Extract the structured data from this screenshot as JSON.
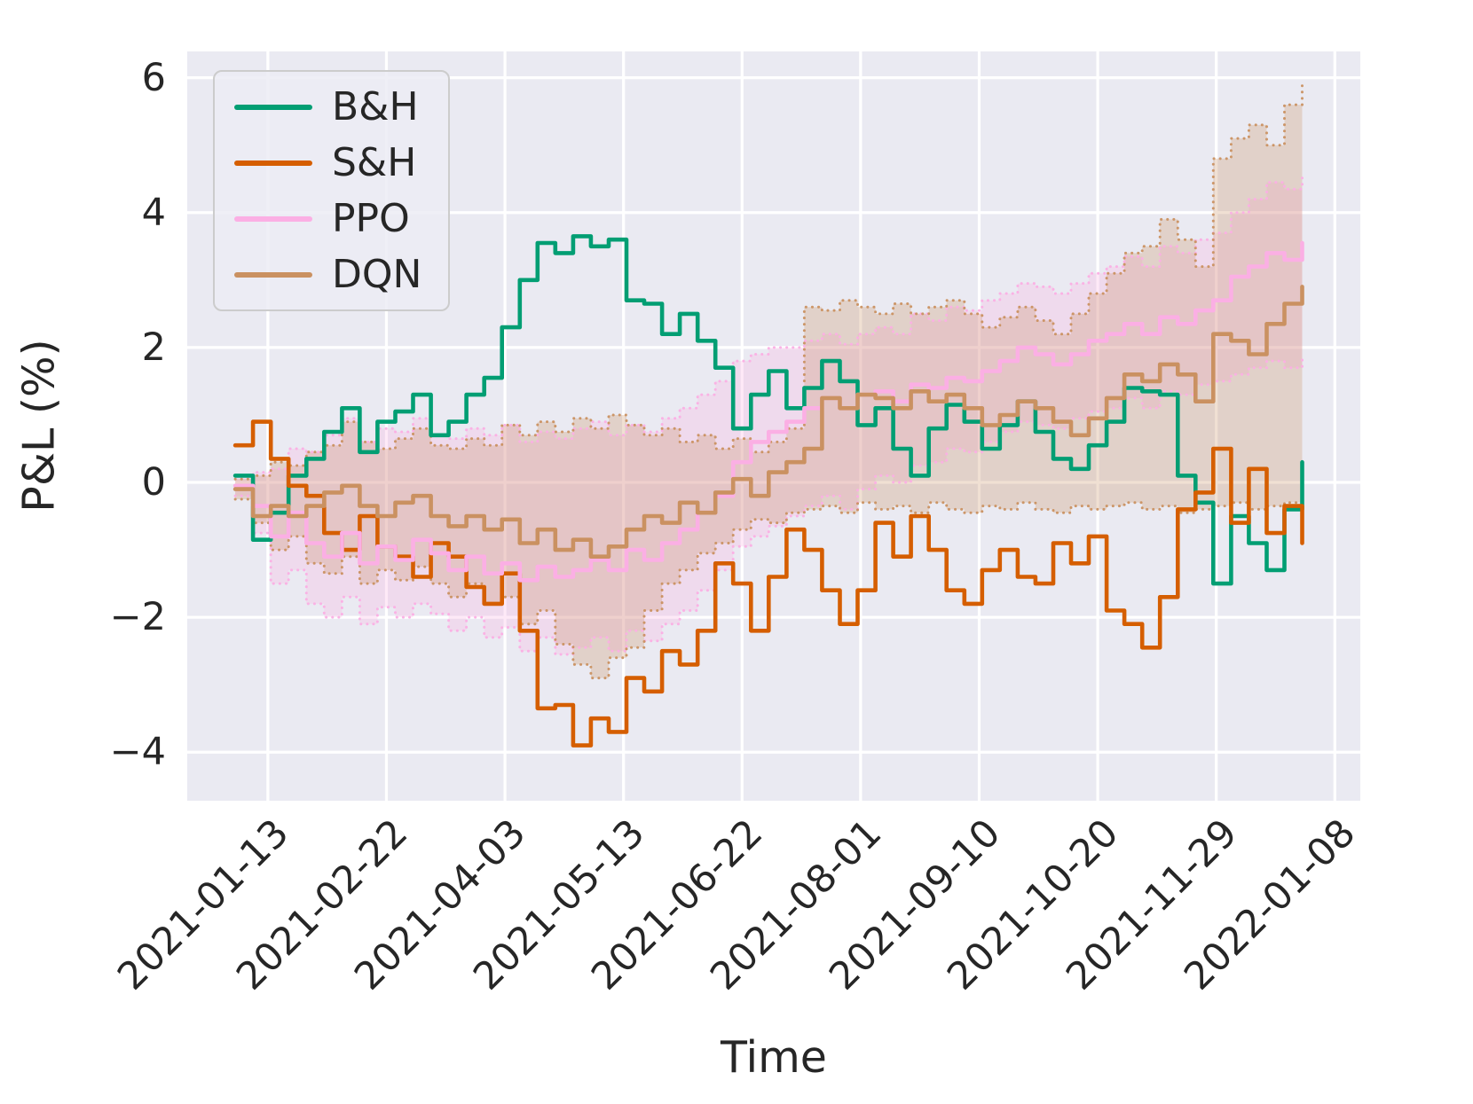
{
  "figure": {
    "background": "#ffffff",
    "axes_background": "#eaeaf2",
    "grid_color": "#ffffff",
    "text_color": "#262626",
    "legend_border_color": "#cccccc"
  },
  "legend": {
    "entries": [
      {
        "label": "B&H",
        "series": "bh"
      },
      {
        "label": "S&H",
        "series": "sh"
      },
      {
        "label": "PPO",
        "series": "ppo"
      },
      {
        "label": "DQN",
        "series": "dqn"
      }
    ]
  },
  "chart_data": {
    "type": "line",
    "title": "",
    "xlabel": "Time",
    "ylabel": "P&L (%)",
    "axes": {
      "grid": true,
      "ylim": [
        -4.72,
        6.39
      ],
      "xlim_days": [
        -16.2,
        379.6
      ],
      "x_start_date": "2021-01-02",
      "ytick_values": [
        6,
        4,
        2,
        0,
        -2,
        -4
      ],
      "ytick_labels": [
        "6",
        "4",
        "2",
        "0",
        "−2",
        "−4"
      ],
      "xtick_days": [
        11,
        51,
        91,
        131,
        171,
        211,
        251,
        291,
        331,
        371
      ],
      "xtick_labels": [
        "2021-01-13",
        "2021-02-22",
        "2021-04-03",
        "2021-05-13",
        "2021-06-22",
        "2021-08-01",
        "2021-09-10",
        "2021-10-20",
        "2021-11-29",
        "2022-01-08"
      ]
    },
    "x_days": [
      0,
      6,
      12,
      18,
      24,
      30,
      36,
      42,
      48,
      54,
      60,
      66,
      72,
      78,
      84,
      90,
      96,
      102,
      108,
      114,
      120,
      126,
      132,
      138,
      144,
      150,
      156,
      162,
      168,
      174,
      180,
      186,
      192,
      198,
      204,
      210,
      216,
      222,
      228,
      234,
      240,
      246,
      252,
      258,
      264,
      270,
      276,
      282,
      288,
      294,
      300,
      306,
      312,
      318,
      324,
      330,
      336,
      342,
      348,
      354,
      360
    ],
    "series": [
      {
        "id": "bh",
        "name": "B&H",
        "color": "#029e73",
        "band": null,
        "values": [
          0.1,
          -0.85,
          -0.45,
          0.1,
          0.35,
          0.75,
          1.1,
          0.45,
          0.9,
          1.05,
          1.3,
          0.7,
          0.9,
          1.3,
          1.55,
          2.3,
          3.0,
          3.55,
          3.4,
          3.65,
          3.5,
          3.6,
          2.7,
          2.65,
          2.2,
          2.5,
          2.1,
          1.7,
          0.8,
          1.3,
          1.65,
          1.1,
          1.4,
          1.8,
          1.5,
          0.85,
          1.1,
          0.5,
          0.1,
          0.8,
          1.15,
          0.9,
          0.5,
          0.85,
          1.2,
          0.75,
          0.35,
          0.2,
          0.55,
          0.9,
          1.4,
          1.35,
          1.3,
          0.1,
          -0.3,
          -1.5,
          -0.5,
          -0.9,
          -1.3,
          -0.4,
          0.3
        ]
      },
      {
        "id": "sh",
        "name": "S&H",
        "color": "#d55e00",
        "band": null,
        "values": [
          0.55,
          0.9,
          0.35,
          -0.05,
          -0.2,
          -0.75,
          -1.0,
          -0.5,
          -0.95,
          -1.1,
          -1.4,
          -0.9,
          -1.1,
          -1.55,
          -1.8,
          -1.35,
          -2.2,
          -3.35,
          -3.3,
          -3.9,
          -3.5,
          -3.7,
          -2.9,
          -3.1,
          -2.5,
          -2.7,
          -2.2,
          -1.2,
          -1.5,
          -2.2,
          -1.4,
          -0.7,
          -1.0,
          -1.6,
          -2.1,
          -1.6,
          -0.6,
          -1.1,
          -0.5,
          -1.0,
          -1.6,
          -1.8,
          -1.3,
          -1.0,
          -1.4,
          -1.5,
          -0.9,
          -1.2,
          -0.8,
          -1.9,
          -2.1,
          -2.45,
          -1.7,
          -0.4,
          -0.15,
          0.5,
          -0.6,
          0.2,
          -0.75,
          -0.35,
          -0.9
        ]
      },
      {
        "id": "ppo",
        "name": "PPO",
        "color": "#fbafe4",
        "values": [
          -0.05,
          -0.35,
          -0.8,
          -0.45,
          -0.9,
          -1.1,
          -0.75,
          -1.2,
          -0.95,
          -1.15,
          -0.85,
          -1.05,
          -1.3,
          -1.1,
          -1.35,
          -1.2,
          -1.45,
          -1.25,
          -1.4,
          -1.3,
          -1.15,
          -1.3,
          -1.0,
          -1.15,
          -0.9,
          -0.7,
          -0.45,
          -0.2,
          0.3,
          0.6,
          0.75,
          0.9,
          1.1,
          1.25,
          1.1,
          1.3,
          1.35,
          1.2,
          1.45,
          1.4,
          1.55,
          1.5,
          1.65,
          1.8,
          2.0,
          1.9,
          1.75,
          1.9,
          2.1,
          2.2,
          2.35,
          2.2,
          2.45,
          2.35,
          2.55,
          2.7,
          3.05,
          3.2,
          3.4,
          3.3,
          3.55
        ],
        "band": {
          "upper": [
            0.1,
            0.15,
            0.2,
            0.5,
            0.45,
            0.7,
            0.95,
            0.6,
            0.8,
            0.75,
            0.95,
            0.7,
            0.65,
            0.8,
            0.7,
            0.85,
            0.6,
            0.75,
            0.65,
            0.8,
            0.9,
            0.7,
            0.85,
            0.75,
            0.95,
            1.1,
            1.3,
            1.5,
            1.8,
            1.9,
            2.0,
            2.0,
            2.1,
            2.2,
            2.05,
            2.2,
            2.3,
            2.2,
            2.5,
            2.4,
            2.6,
            2.55,
            2.7,
            2.8,
            2.95,
            2.9,
            2.8,
            2.95,
            3.1,
            3.2,
            3.35,
            3.2,
            3.5,
            3.4,
            3.6,
            3.7,
            4.0,
            4.2,
            4.45,
            4.35,
            4.6
          ],
          "lower": [
            -0.2,
            -0.75,
            -1.5,
            -1.3,
            -1.8,
            -2.0,
            -1.7,
            -2.1,
            -1.85,
            -2.0,
            -1.8,
            -1.95,
            -2.2,
            -2.0,
            -2.3,
            -2.15,
            -2.5,
            -2.3,
            -2.55,
            -2.45,
            -2.3,
            -2.5,
            -2.2,
            -2.35,
            -2.1,
            -1.9,
            -1.6,
            -1.3,
            -0.95,
            -0.8,
            -0.65,
            -0.5,
            -0.35,
            -0.2,
            -0.4,
            -0.1,
            0.1,
            0.0,
            0.25,
            0.3,
            0.5,
            0.45,
            0.6,
            0.75,
            0.9,
            0.85,
            0.8,
            0.95,
            1.05,
            1.1,
            1.25,
            1.1,
            1.35,
            1.3,
            1.45,
            1.5,
            1.6,
            1.7,
            1.8,
            1.7,
            1.85
          ]
        }
      },
      {
        "id": "dqn",
        "name": "DQN",
        "color": "#ca9161",
        "values": [
          -0.1,
          -0.5,
          -0.35,
          -0.5,
          -0.35,
          -0.15,
          -0.05,
          -0.35,
          -0.5,
          -0.3,
          -0.2,
          -0.5,
          -0.65,
          -0.5,
          -0.7,
          -0.55,
          -0.9,
          -0.7,
          -1.0,
          -0.85,
          -1.1,
          -0.95,
          -0.7,
          -0.5,
          -0.6,
          -0.3,
          -0.45,
          -0.15,
          0.05,
          -0.2,
          0.15,
          0.3,
          0.5,
          1.25,
          1.1,
          1.3,
          1.25,
          1.1,
          1.35,
          1.2,
          1.3,
          1.1,
          0.85,
          1.0,
          1.2,
          1.1,
          0.9,
          0.7,
          0.95,
          1.25,
          1.6,
          1.5,
          1.75,
          1.6,
          1.2,
          2.2,
          2.1,
          1.9,
          2.35,
          2.65,
          2.9
        ],
        "band": {
          "upper": [
            0.05,
            0.1,
            0.3,
            0.25,
            0.45,
            0.55,
            0.9,
            0.6,
            0.5,
            0.65,
            0.8,
            0.55,
            0.5,
            0.65,
            0.55,
            0.85,
            0.7,
            0.9,
            0.75,
            0.95,
            0.8,
            1.0,
            0.85,
            0.7,
            0.8,
            0.6,
            0.7,
            0.5,
            0.65,
            0.45,
            0.6,
            0.8,
            2.6,
            2.55,
            2.7,
            2.6,
            2.5,
            2.65,
            2.5,
            2.6,
            2.7,
            2.5,
            2.3,
            2.45,
            2.6,
            2.4,
            2.2,
            2.5,
            2.8,
            3.1,
            3.4,
            3.5,
            3.9,
            3.6,
            3.2,
            4.8,
            5.1,
            5.3,
            5.0,
            5.6,
            5.9
          ],
          "lower": [
            -0.25,
            -0.6,
            -1.0,
            -0.8,
            -1.2,
            -1.35,
            -1.1,
            -1.5,
            -1.3,
            -1.45,
            -1.25,
            -1.5,
            -1.7,
            -1.5,
            -1.8,
            -1.7,
            -2.1,
            -1.9,
            -2.4,
            -2.7,
            -2.9,
            -2.6,
            -2.45,
            -1.9,
            -1.5,
            -1.3,
            -1.05,
            -0.9,
            -0.7,
            -0.55,
            -0.6,
            -0.45,
            -0.4,
            -0.35,
            -0.45,
            -0.3,
            -0.4,
            -0.35,
            -0.45,
            -0.3,
            -0.4,
            -0.45,
            -0.35,
            -0.4,
            -0.3,
            -0.4,
            -0.45,
            -0.35,
            -0.4,
            -0.35,
            -0.3,
            -0.4,
            -0.35,
            -0.45,
            -0.4,
            -0.35,
            -0.3,
            -0.4,
            -0.35,
            -0.3,
            -0.35
          ]
        }
      }
    ]
  }
}
